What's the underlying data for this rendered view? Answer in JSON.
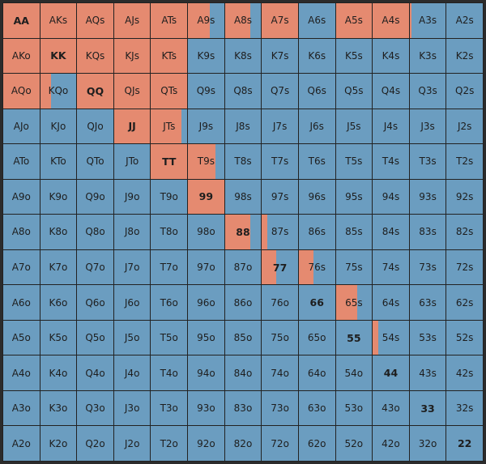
{
  "colors": {
    "raise": "#e58a70",
    "fold": "#6b9dc0",
    "border": "#222222"
  },
  "ranks": [
    "A",
    "K",
    "Q",
    "J",
    "T",
    "9",
    "8",
    "7",
    "6",
    "5",
    "4",
    "3",
    "2"
  ],
  "grid": [
    [
      {
        "label": "AA",
        "freq": 1
      },
      {
        "label": "AKs",
        "freq": 1
      },
      {
        "label": "AQs",
        "freq": 1
      },
      {
        "label": "AJs",
        "freq": 1
      },
      {
        "label": "ATs",
        "freq": 1
      },
      {
        "label": "A9s",
        "freq": 0.6
      },
      {
        "label": "A8s",
        "freq": 0.7
      },
      {
        "label": "A7s",
        "freq": 1
      },
      {
        "label": "A6s",
        "freq": 0
      },
      {
        "label": "A5s",
        "freq": 1
      },
      {
        "label": "A4s",
        "freq": 1
      },
      {
        "label": "A3s",
        "freq": 0.05
      },
      {
        "label": "A2s",
        "freq": 0
      }
    ],
    [
      {
        "label": "AKo",
        "freq": 1
      },
      {
        "label": "KK",
        "freq": 1
      },
      {
        "label": "KQs",
        "freq": 1
      },
      {
        "label": "KJs",
        "freq": 1
      },
      {
        "label": "KTs",
        "freq": 1
      },
      {
        "label": "K9s",
        "freq": 0
      },
      {
        "label": "K8s",
        "freq": 0
      },
      {
        "label": "K7s",
        "freq": 0
      },
      {
        "label": "K6s",
        "freq": 0
      },
      {
        "label": "K5s",
        "freq": 0
      },
      {
        "label": "K4s",
        "freq": 0
      },
      {
        "label": "K3s",
        "freq": 0
      },
      {
        "label": "K2s",
        "freq": 0
      }
    ],
    [
      {
        "label": "AQo",
        "freq": 1
      },
      {
        "label": "KQo",
        "freq": 0.3
      },
      {
        "label": "QQ",
        "freq": 1
      },
      {
        "label": "QJs",
        "freq": 1
      },
      {
        "label": "QTs",
        "freq": 1
      },
      {
        "label": "Q9s",
        "freq": 0
      },
      {
        "label": "Q8s",
        "freq": 0
      },
      {
        "label": "Q7s",
        "freq": 0
      },
      {
        "label": "Q6s",
        "freq": 0
      },
      {
        "label": "Q5s",
        "freq": 0
      },
      {
        "label": "Q4s",
        "freq": 0
      },
      {
        "label": "Q3s",
        "freq": 0
      },
      {
        "label": "Q2s",
        "freq": 0
      }
    ],
    [
      {
        "label": "AJo",
        "freq": 0
      },
      {
        "label": "KJo",
        "freq": 0
      },
      {
        "label": "QJo",
        "freq": 0
      },
      {
        "label": "JJ",
        "freq": 1
      },
      {
        "label": "JTs",
        "freq": 0.85
      },
      {
        "label": "J9s",
        "freq": 0
      },
      {
        "label": "J8s",
        "freq": 0
      },
      {
        "label": "J7s",
        "freq": 0
      },
      {
        "label": "J6s",
        "freq": 0
      },
      {
        "label": "J5s",
        "freq": 0
      },
      {
        "label": "J4s",
        "freq": 0
      },
      {
        "label": "J3s",
        "freq": 0
      },
      {
        "label": "J2s",
        "freq": 0
      }
    ],
    [
      {
        "label": "ATo",
        "freq": 0
      },
      {
        "label": "KTo",
        "freq": 0
      },
      {
        "label": "QTo",
        "freq": 0
      },
      {
        "label": "JTo",
        "freq": 0
      },
      {
        "label": "TT",
        "freq": 1
      },
      {
        "label": "T9s",
        "freq": 0.75
      },
      {
        "label": "T8s",
        "freq": 0
      },
      {
        "label": "T7s",
        "freq": 0
      },
      {
        "label": "T6s",
        "freq": 0
      },
      {
        "label": "T5s",
        "freq": 0
      },
      {
        "label": "T4s",
        "freq": 0
      },
      {
        "label": "T3s",
        "freq": 0
      },
      {
        "label": "T2s",
        "freq": 0
      }
    ],
    [
      {
        "label": "A9o",
        "freq": 0
      },
      {
        "label": "K9o",
        "freq": 0
      },
      {
        "label": "Q9o",
        "freq": 0
      },
      {
        "label": "J9o",
        "freq": 0
      },
      {
        "label": "T9o",
        "freq": 0
      },
      {
        "label": "99",
        "freq": 1
      },
      {
        "label": "98s",
        "freq": 0
      },
      {
        "label": "97s",
        "freq": 0
      },
      {
        "label": "96s",
        "freq": 0
      },
      {
        "label": "95s",
        "freq": 0
      },
      {
        "label": "94s",
        "freq": 0
      },
      {
        "label": "93s",
        "freq": 0
      },
      {
        "label": "92s",
        "freq": 0
      }
    ],
    [
      {
        "label": "A8o",
        "freq": 0
      },
      {
        "label": "K8o",
        "freq": 0
      },
      {
        "label": "Q8o",
        "freq": 0
      },
      {
        "label": "J8o",
        "freq": 0
      },
      {
        "label": "T8o",
        "freq": 0
      },
      {
        "label": "98o",
        "freq": 0
      },
      {
        "label": "88",
        "freq": 0.7
      },
      {
        "label": "87s",
        "freq": 0.15
      },
      {
        "label": "86s",
        "freq": 0
      },
      {
        "label": "85s",
        "freq": 0
      },
      {
        "label": "84s",
        "freq": 0
      },
      {
        "label": "83s",
        "freq": 0
      },
      {
        "label": "82s",
        "freq": 0
      }
    ],
    [
      {
        "label": "A7o",
        "freq": 0
      },
      {
        "label": "K7o",
        "freq": 0
      },
      {
        "label": "Q7o",
        "freq": 0
      },
      {
        "label": "J7o",
        "freq": 0
      },
      {
        "label": "T7o",
        "freq": 0
      },
      {
        "label": "97o",
        "freq": 0
      },
      {
        "label": "87o",
        "freq": 0
      },
      {
        "label": "77",
        "freq": 0.4
      },
      {
        "label": "76s",
        "freq": 0.4
      },
      {
        "label": "75s",
        "freq": 0
      },
      {
        "label": "74s",
        "freq": 0
      },
      {
        "label": "73s",
        "freq": 0
      },
      {
        "label": "72s",
        "freq": 0
      }
    ],
    [
      {
        "label": "A6o",
        "freq": 0
      },
      {
        "label": "K6o",
        "freq": 0
      },
      {
        "label": "Q6o",
        "freq": 0
      },
      {
        "label": "J6o",
        "freq": 0
      },
      {
        "label": "T6o",
        "freq": 0
      },
      {
        "label": "96o",
        "freq": 0
      },
      {
        "label": "86o",
        "freq": 0
      },
      {
        "label": "76o",
        "freq": 0
      },
      {
        "label": "66",
        "freq": 0
      },
      {
        "label": "65s",
        "freq": 0.6
      },
      {
        "label": "64s",
        "freq": 0
      },
      {
        "label": "63s",
        "freq": 0
      },
      {
        "label": "62s",
        "freq": 0
      }
    ],
    [
      {
        "label": "A5o",
        "freq": 0
      },
      {
        "label": "K5o",
        "freq": 0
      },
      {
        "label": "Q5o",
        "freq": 0
      },
      {
        "label": "J5o",
        "freq": 0
      },
      {
        "label": "T5o",
        "freq": 0
      },
      {
        "label": "95o",
        "freq": 0
      },
      {
        "label": "85o",
        "freq": 0
      },
      {
        "label": "75o",
        "freq": 0
      },
      {
        "label": "65o",
        "freq": 0
      },
      {
        "label": "55",
        "freq": 0
      },
      {
        "label": "54s",
        "freq": 0.15
      },
      {
        "label": "53s",
        "freq": 0
      },
      {
        "label": "52s",
        "freq": 0
      }
    ],
    [
      {
        "label": "A4o",
        "freq": 0
      },
      {
        "label": "K4o",
        "freq": 0
      },
      {
        "label": "Q4o",
        "freq": 0
      },
      {
        "label": "J4o",
        "freq": 0
      },
      {
        "label": "T4o",
        "freq": 0
      },
      {
        "label": "94o",
        "freq": 0
      },
      {
        "label": "84o",
        "freq": 0
      },
      {
        "label": "74o",
        "freq": 0
      },
      {
        "label": "64o",
        "freq": 0
      },
      {
        "label": "54o",
        "freq": 0
      },
      {
        "label": "44",
        "freq": 0
      },
      {
        "label": "43s",
        "freq": 0
      },
      {
        "label": "42s",
        "freq": 0
      }
    ],
    [
      {
        "label": "A3o",
        "freq": 0
      },
      {
        "label": "K3o",
        "freq": 0
      },
      {
        "label": "Q3o",
        "freq": 0
      },
      {
        "label": "J3o",
        "freq": 0
      },
      {
        "label": "T3o",
        "freq": 0
      },
      {
        "label": "93o",
        "freq": 0
      },
      {
        "label": "83o",
        "freq": 0
      },
      {
        "label": "73o",
        "freq": 0
      },
      {
        "label": "63o",
        "freq": 0
      },
      {
        "label": "53o",
        "freq": 0
      },
      {
        "label": "43o",
        "freq": 0
      },
      {
        "label": "33",
        "freq": 0
      },
      {
        "label": "32s",
        "freq": 0
      }
    ],
    [
      {
        "label": "A2o",
        "freq": 0
      },
      {
        "label": "K2o",
        "freq": 0
      },
      {
        "label": "Q2o",
        "freq": 0
      },
      {
        "label": "J2o",
        "freq": 0
      },
      {
        "label": "T2o",
        "freq": 0
      },
      {
        "label": "92o",
        "freq": 0
      },
      {
        "label": "82o",
        "freq": 0
      },
      {
        "label": "72o",
        "freq": 0
      },
      {
        "label": "62o",
        "freq": 0
      },
      {
        "label": "52o",
        "freq": 0
      },
      {
        "label": "42o",
        "freq": 0
      },
      {
        "label": "32o",
        "freq": 0
      },
      {
        "label": "22",
        "freq": 0
      }
    ]
  ]
}
